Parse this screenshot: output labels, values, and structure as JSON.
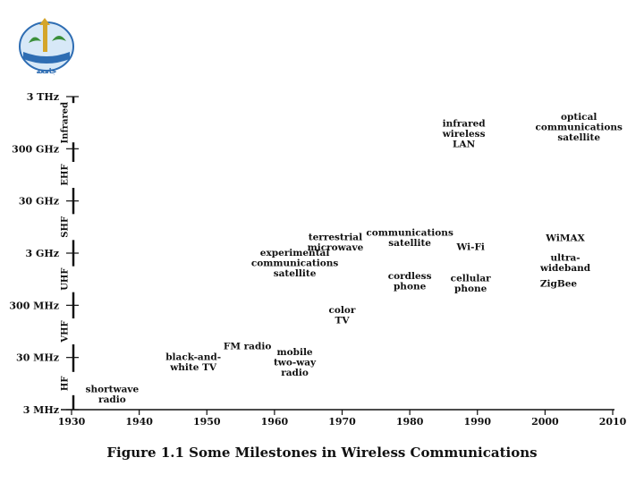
{
  "caption": "Figure 1.1 Some Milestones in Wireless Communications",
  "logo": {
    "icon": "university-seal-logo",
    "text": "جامعة",
    "colors": [
      "#2e6db3",
      "#d4a52a",
      "#3a8f3a"
    ]
  },
  "chart_data": {
    "type": "scatter",
    "title": "",
    "xlabel": "",
    "ylabel": "",
    "x_ticks": [
      1930,
      1940,
      1950,
      1960,
      1970,
      1980,
      1990,
      2000,
      2010
    ],
    "xlim": [
      1930,
      2010
    ],
    "y_scale": "log",
    "y_ticks": [
      {
        "label": "3 MHz",
        "hz": 3000000.0
      },
      {
        "label": "30 MHz",
        "hz": 30000000.0
      },
      {
        "label": "300 MHz",
        "hz": 300000000.0
      },
      {
        "label": "3 GHz",
        "hz": 3000000000.0
      },
      {
        "label": "30 GHz",
        "hz": 30000000000.0
      },
      {
        "label": "300 GHz",
        "hz": 300000000000.0
      },
      {
        "label": "3 THz",
        "hz": 3000000000000.0
      }
    ],
    "ylim_hz": [
      3000000.0,
      3000000000000.0
    ],
    "bands": [
      {
        "label": "HF",
        "from_hz": 3000000.0,
        "to_hz": 30000000.0
      },
      {
        "label": "VHF",
        "from_hz": 30000000.0,
        "to_hz": 300000000.0
      },
      {
        "label": "UHF",
        "from_hz": 300000000.0,
        "to_hz": 3000000000.0
      },
      {
        "label": "SHF",
        "from_hz": 3000000000.0,
        "to_hz": 30000000000.0
      },
      {
        "label": "EHF",
        "from_hz": 30000000000.0,
        "to_hz": 300000000000.0
      },
      {
        "label": "Infrared",
        "from_hz": 300000000000.0,
        "to_hz": 3000000000000.0
      }
    ],
    "milestones": [
      {
        "lines": [
          "shortwave",
          "radio"
        ],
        "year": 1936,
        "hz": 6000000.0
      },
      {
        "lines": [
          "FM radio"
        ],
        "year": 1956,
        "hz": 50000000.0
      },
      {
        "lines": [
          "black-and-",
          "white TV"
        ],
        "year": 1948,
        "hz": 25000000.0
      },
      {
        "lines": [
          "mobile",
          "two-way",
          "radio"
        ],
        "year": 1963,
        "hz": 25000000.0
      },
      {
        "lines": [
          "color",
          "TV"
        ],
        "year": 1970,
        "hz": 200000000.0
      },
      {
        "lines": [
          "experimental",
          "communications",
          "satellite"
        ],
        "year": 1963,
        "hz": 2000000000.0
      },
      {
        "lines": [
          "terrestrial",
          "microwave"
        ],
        "year": 1969,
        "hz": 5000000000.0
      },
      {
        "lines": [
          "communications",
          "satellite"
        ],
        "year": 1980,
        "hz": 6000000000.0
      },
      {
        "lines": [
          "cordless",
          "phone"
        ],
        "year": 1980,
        "hz": 900000000.0
      },
      {
        "lines": [
          "cellular",
          "phone"
        ],
        "year": 1989,
        "hz": 800000000.0
      },
      {
        "lines": [
          "Wi-Fi"
        ],
        "year": 1989,
        "hz": 4000000000.0
      },
      {
        "lines": [
          "infrared",
          "wireless",
          "LAN"
        ],
        "year": 1988,
        "hz": 600000000000.0
      },
      {
        "lines": [
          "optical",
          "communications",
          "satellite"
        ],
        "year": 2005,
        "hz": 800000000000.0
      },
      {
        "lines": [
          "WiMAX"
        ],
        "year": 2003,
        "hz": 6000000000.0
      },
      {
        "lines": [
          "ultra-",
          "wideband"
        ],
        "year": 2003,
        "hz": 2000000000.0
      },
      {
        "lines": [
          "ZigBee"
        ],
        "year": 2002,
        "hz": 800000000.0
      }
    ]
  }
}
